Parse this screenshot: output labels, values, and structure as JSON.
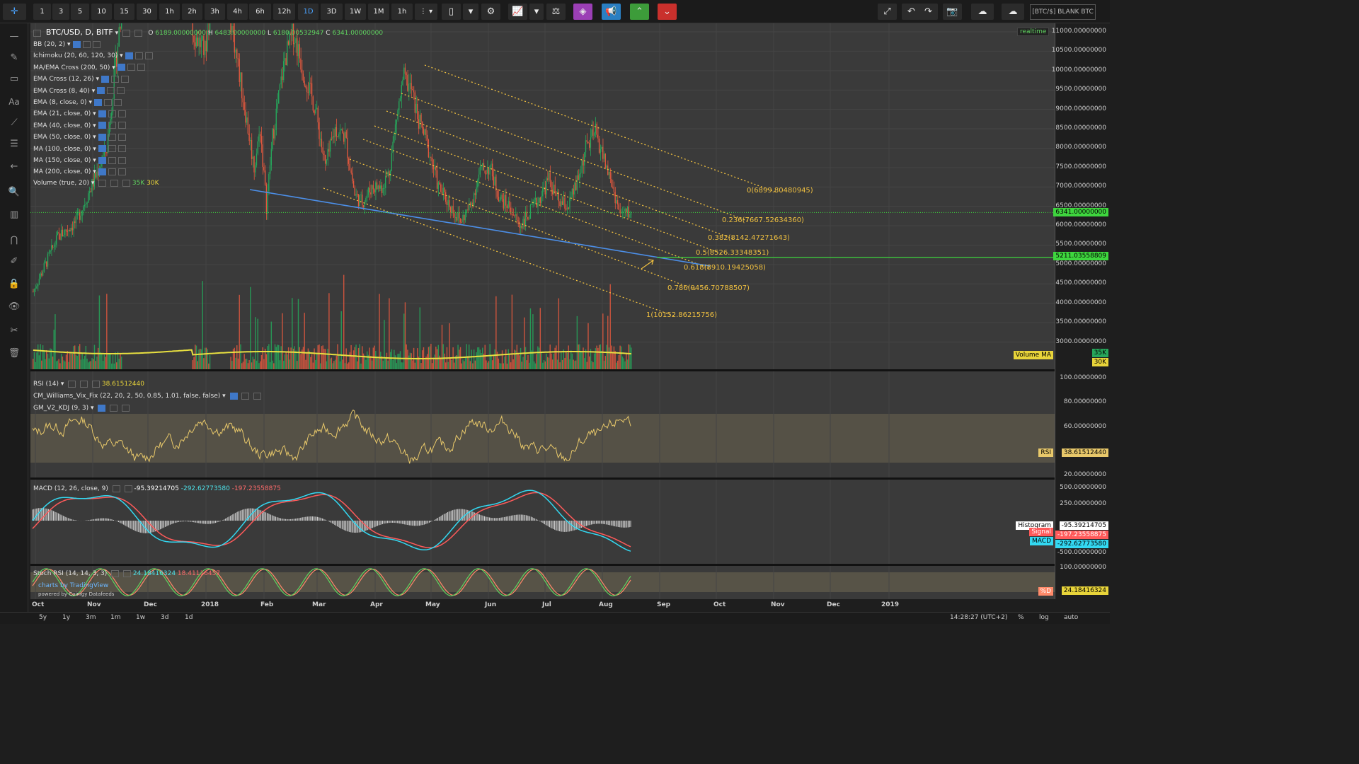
{
  "toolbar": {
    "intervals": [
      {
        "label": "1",
        "active": false
      },
      {
        "label": "3",
        "active": false
      },
      {
        "label": "5",
        "active": false
      },
      {
        "label": "10",
        "active": false
      },
      {
        "label": "15",
        "active": false
      },
      {
        "label": "30",
        "active": false
      },
      {
        "label": "1h",
        "active": false
      },
      {
        "label": "2h",
        "active": false
      },
      {
        "label": "3h",
        "active": false
      },
      {
        "label": "4h",
        "active": false
      },
      {
        "label": "6h",
        "active": false
      },
      {
        "label": "12h",
        "active": false
      },
      {
        "label": "1D",
        "active": true
      },
      {
        "label": "3D",
        "active": false
      },
      {
        "label": "1W",
        "active": false
      },
      {
        "label": "1M",
        "active": false
      },
      {
        "label": "1h",
        "active": false
      }
    ],
    "symbol_tag": "[BTC/$] BLANK BTC"
  },
  "main_legend": {
    "symbol": "BTC/USD, D, BITF",
    "open_label": "O",
    "open": "6189.00000000",
    "high_label": "H",
    "high": "6483.00000000",
    "low_label": "L",
    "low": "6180.00532947",
    "close_label": "C",
    "close": "6341.00000000"
  },
  "indicators": [
    "BB (20, 2)",
    "Ichimoku (20, 60, 120, 30)",
    "MA/EMA Cross (200, 50)",
    "EMA Cross (12, 26)",
    "EMA Cross (8, 40)",
    "EMA (8, close, 0)",
    "EMA (21, close, 0)",
    "EMA (40, close, 0)",
    "EMA (50, close, 0)",
    "MA (100, close, 0)",
    "MA (150, close, 0)",
    "MA (200, close, 0)"
  ],
  "volume_legend": {
    "label": "Volume (true, 20)",
    "v1": "35K",
    "v2": "30K"
  },
  "realtime": "realtime",
  "price_axis": {
    "labels": [
      "11000.00000000",
      "10500.00000000",
      "10000.00000000",
      "9500.00000000",
      "9000.00000000",
      "8500.00000000",
      "8000.00000000",
      "7500.00000000",
      "7000.00000000",
      "6500.00000000",
      "6000.00000000",
      "5500.00000000",
      "5000.00000000",
      "4500.00000000",
      "4000.00000000",
      "3500.00000000",
      "3000.00000000"
    ],
    "current_price": "6341.00000000",
    "level_price": "5211.03558809",
    "volume_ma_tag": "Volume MA",
    "vol_35k": "35K",
    "vol_30k": "30K"
  },
  "fib_levels": [
    {
      "label": "0(6899.80480945)"
    },
    {
      "label": "0.236(7667.52634360)"
    },
    {
      "label": "0.382(8142.47271643)"
    },
    {
      "label": "0.5(8526.33348351)"
    },
    {
      "label": "0.618(8910.19425058)"
    },
    {
      "label": "0.786(9456.70788507)"
    },
    {
      "label": "1(10152.86215756)"
    }
  ],
  "rsi": {
    "legend": "RSI (14)",
    "value": "38.61512440",
    "vix_legend": "CM_Williams_Vix_Fix (22, 20, 2, 50, 0.85, 1.01, false, false)",
    "kdj_legend": "GM_V2_KDJ (9, 3)",
    "axis": [
      "100.00000000",
      "80.00000000",
      "60.00000000",
      "20.00000000"
    ],
    "tag_label": "RSI",
    "tag_value": "38.61512440"
  },
  "macd": {
    "legend": "MACD (12, 26, close, 9)",
    "hist_value": "-95.39214705",
    "macd_value": "-292.62773580",
    "signal_value": "-197.23558875",
    "axis": [
      "500.00000000",
      "250.00000000",
      "-500.00000000"
    ],
    "hist_tag": "Histogram",
    "signal_tag": "Signal",
    "macd_tag": "MACD"
  },
  "stoch": {
    "legend": "Stoch RSI (14, 14, 3, 3)",
    "k_value": "24.18416324",
    "d_value": "18.41116457",
    "axis": [
      "100.00000000"
    ],
    "d_tag": "%D"
  },
  "credit": {
    "line1": "charts by TradingView",
    "line2": "powered by Coinigy Datafeeds"
  },
  "time_axis": [
    "Oct",
    "Nov",
    "Dec",
    "2018",
    "Feb",
    "Mar",
    "Apr",
    "May",
    "Jun",
    "Jul",
    "Aug",
    "Sep",
    "Oct",
    "Nov",
    "Dec",
    "2019"
  ],
  "bottom": {
    "ranges": [
      "5y",
      "1y",
      "3m",
      "1m",
      "1w",
      "3d",
      "1d"
    ],
    "clock": "14:28:27 (UTC+2)",
    "percent": "%",
    "log": "log",
    "auto": "auto"
  },
  "colors": {
    "up": "#26a65b",
    "down": "#e2583e",
    "fib": "#f0c040",
    "trend": "#4c8fe8",
    "level": "#3ed63e",
    "rsi": "#e8c86a",
    "macd_line": "#33d9f2",
    "signal_line": "#ff5a5a"
  }
}
